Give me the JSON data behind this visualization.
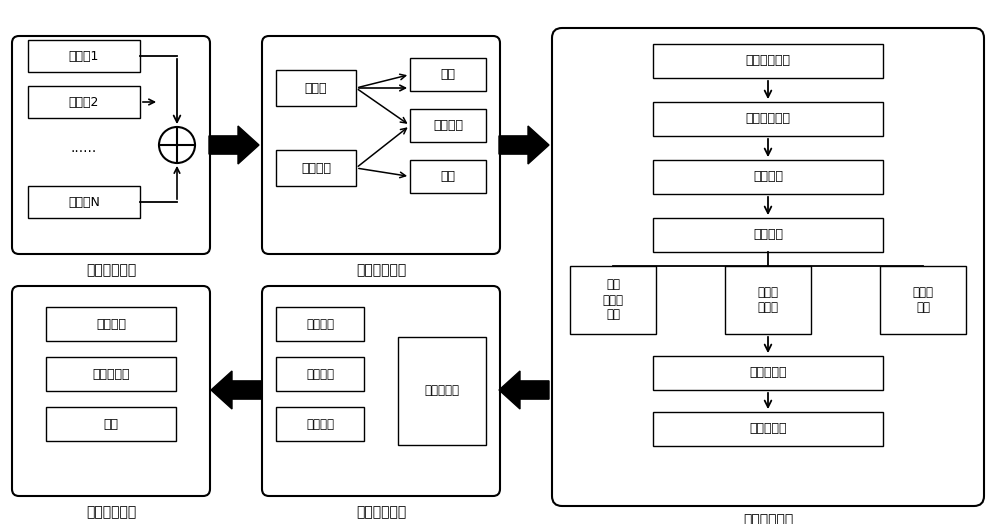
{
  "bg_color": "#ffffff",
  "fig_width": 10.0,
  "fig_height": 5.24,
  "dpi": 100,
  "module1_label": "数据融合模块",
  "module2_label": "场景分类模块",
  "module3_label": "遮挡修复模块",
  "module4_label": "量表映射模块",
  "module5_label": "量化分析模块",
  "data_flows": [
    "数据流1",
    "数据流2",
    "......",
    "数据流N"
  ],
  "scene_left": [
    "人检测",
    "物体检测"
  ],
  "scene_right": [
    "单人",
    "人和物体",
    "多人"
  ],
  "occlude_flow": [
    "物体边框回归",
    "主体边框回归",
    "身体部分",
    "遮挡算子",
    "运动学辅助",
    "补充关键点"
  ],
  "occlude_branches": [
    "主体\n被物体\n遮挡",
    "主体使\n用物体",
    "主体间\n遮挡"
  ],
  "quant_left": [
    "静态特征",
    "动态特征",
    "统计特征"
  ],
  "quant_right": "运动学特征",
  "gauge_items": [
    "尺寸量化",
    "特征选择器",
    "映射"
  ]
}
